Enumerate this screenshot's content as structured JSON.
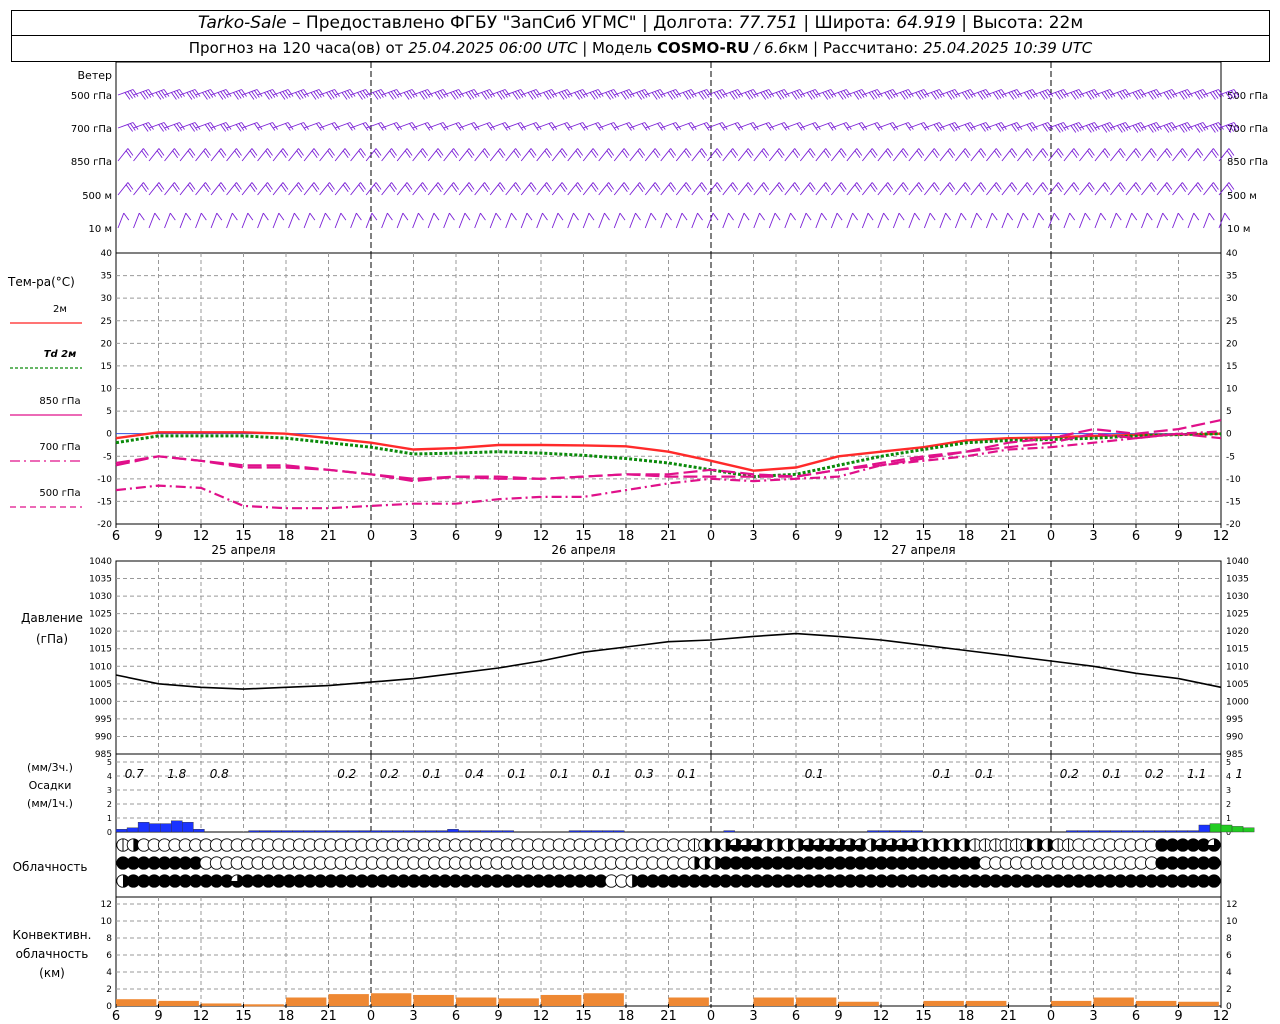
{
  "header": {
    "station": "Tarko-Sale",
    "provider": " – Предоставлено ФГБУ \"ЗапСиб УГМС\" | Долгота: ",
    "lon": "77.751",
    "lat_label": " | Широта: ",
    "lat": "64.919",
    "alt_label": " | Высота: 22м",
    "forecast_prefix": "Прогноз на 120 часа(ов) от ",
    "forecast_from": "25.04.2025 06:00 UTC",
    "model_label": " | Модель ",
    "model": "COSMO-RU",
    "model_res": " / 6.6",
    "model_res_unit": "км | Рассчитано: ",
    "computed": "25.04.2025 10:39 UTC"
  },
  "panels": {
    "wind": {
      "title": "Ветер",
      "levels": [
        "500 гПа",
        "700 гПа",
        "850 гПа",
        "500 м",
        "10 м"
      ]
    },
    "temp": {
      "title": "Тем-ра(°C)",
      "legend": [
        {
          "text": "2м",
          "color": "#ff2020",
          "dash": ""
        },
        {
          "text": "Td 2м",
          "color": "#0a8a0a",
          "dash": "3,2"
        },
        {
          "text": "850 гПа",
          "color": "#e0108a",
          "dash": ""
        },
        {
          "text": "700 гПа",
          "color": "#e0108a",
          "dash": "10,4,2,4"
        },
        {
          "text": "500 гПа",
          "color": "#e0108a",
          "dash": "6,4"
        }
      ]
    },
    "pressure": {
      "title": "Давление",
      "unit": "(гПа)"
    },
    "precip": {
      "title1": "(мм/3ч.)",
      "title2": "Осадки",
      "title3": "(мм/1ч.)"
    },
    "cloud": {
      "title": "Облачность"
    },
    "conv": {
      "title1": "Конвективн.",
      "title2": "облачность",
      "title3": "(км)"
    }
  },
  "time_axis": {
    "hour_labels": [
      "6",
      "9",
      "12",
      "15",
      "18",
      "21",
      "0",
      "3",
      "6",
      "9",
      "12",
      "15",
      "18",
      "21",
      "0",
      "3",
      "6",
      "9",
      "12",
      "15",
      "18",
      "21",
      "0",
      "3",
      "6",
      "9",
      "12"
    ],
    "day_labels": [
      "25 апреля",
      "26 апреля",
      "27 апреля"
    ]
  },
  "chart_data": [
    {
      "type": "line",
      "title": "Тем-ра(°C)",
      "x_hours": [
        0,
        3,
        6,
        9,
        12,
        15,
        18,
        21,
        24,
        27,
        30,
        33,
        36,
        39,
        42,
        45,
        48,
        51,
        54,
        57,
        60,
        63,
        66,
        69,
        72,
        75,
        78
      ],
      "ylim": [
        -20,
        40
      ],
      "series": [
        {
          "name": "2м",
          "values": [
            -1,
            0.3,
            0.3,
            0.3,
            0,
            -1,
            -2,
            -3.5,
            -3.2,
            -2.5,
            -2.5,
            -2.6,
            -2.8,
            -4,
            -6,
            -8.2,
            -7.5,
            -5,
            -4,
            -3,
            -1.5,
            -1,
            -0.8,
            -0.5,
            -0.3,
            -0.2,
            0
          ]
        },
        {
          "name": "Td 2м",
          "values": [
            -2,
            -0.5,
            -0.5,
            -0.5,
            -1,
            -2,
            -3,
            -4.5,
            -4.3,
            -4,
            -4.3,
            -4.8,
            -5.5,
            -6.5,
            -8,
            -9.5,
            -9,
            -7,
            -5,
            -3.5,
            -2,
            -1.5,
            -1.3,
            -1,
            -0.5,
            -0.2,
            0
          ]
        },
        {
          "name": "850 гПа",
          "values": [
            -6.5,
            -5,
            -6,
            -7.5,
            -7.5,
            -8,
            -9,
            -10.5,
            -9.5,
            -10,
            -10,
            -9.5,
            -9,
            -9.5,
            -9.5,
            -9.5,
            -9.5,
            -8,
            -7,
            -5.5,
            -4,
            -3,
            -2,
            0,
            -1,
            0,
            -1
          ]
        },
        {
          "name": "700 гПа",
          "values": [
            -12.5,
            -11.5,
            -12,
            -16,
            -16.5,
            -16.5,
            -16,
            -15.5,
            -15.5,
            -14.5,
            -14,
            -14,
            -12.5,
            -11,
            -10,
            -10.5,
            -10,
            -9.5,
            -7,
            -6,
            -5,
            -3.5,
            -3,
            -2,
            -1,
            0,
            0.5
          ]
        },
        {
          "name": "500 гПа",
          "values": [
            -7,
            -5,
            -6,
            -7,
            -7,
            -8,
            -9,
            -10,
            -9.5,
            -9.5,
            -10,
            -9.5,
            -9,
            -9,
            -8,
            -9,
            -9.5,
            -8,
            -6.5,
            -5,
            -4,
            -2,
            -1,
            1,
            0,
            1,
            3
          ]
        }
      ]
    },
    {
      "type": "line",
      "title": "Давление",
      "x_hours": [
        0,
        3,
        6,
        9,
        12,
        15,
        18,
        21,
        24,
        27,
        30,
        33,
        36,
        39,
        42,
        45,
        48,
        51,
        54,
        57,
        60,
        63,
        66,
        69,
        72,
        75,
        78
      ],
      "ylim": [
        985,
        1040
      ],
      "series": [
        {
          "name": "Давление",
          "values": [
            1007.5,
            1005,
            1004,
            1003.5,
            1004,
            1004.5,
            1005.5,
            1006.5,
            1008,
            1009.5,
            1011.5,
            1014,
            1015.5,
            1017,
            1017.5,
            1018.5,
            1019.3,
            1018.5,
            1017.5,
            1016,
            1014.5,
            1013,
            1011.5,
            1010,
            1008,
            1006.5,
            1004
          ]
        }
      ]
    },
    {
      "type": "bar",
      "title": "Осадки",
      "labels_3h": [
        "0.7",
        "1.8",
        "0.8",
        "",
        "",
        "0.2",
        "0.2",
        "0.1",
        "0.4",
        "0.1",
        "0.1",
        "0.1",
        "0.3",
        "0.1",
        "",
        "",
        "0.1",
        "",
        "",
        "0.1",
        "0.1",
        "",
        "0.2",
        "0.1",
        "0.2",
        "1.1",
        "1"
      ],
      "hourly_mm": [
        0.2,
        0.3,
        0.7,
        0.6,
        0.6,
        0.8,
        0.7,
        0.2,
        0,
        0,
        0,
        0,
        0.1,
        0.1,
        0.1,
        0.1,
        0.1,
        0.1,
        0.1,
        0.1,
        0.1,
        0.1,
        0.1,
        0.1,
        0.1,
        0.1,
        0.1,
        0.1,
        0.1,
        0.1,
        0.2,
        0.1,
        0.1,
        0.1,
        0.1,
        0.1,
        0,
        0,
        0,
        0,
        0,
        0.1,
        0.1,
        0.1,
        0.1,
        0.1,
        0,
        0,
        0,
        0,
        0,
        0,
        0,
        0,
        0,
        0.1,
        0,
        0,
        0,
        0,
        0,
        0,
        0,
        0,
        0,
        0,
        0,
        0,
        0.1,
        0.1,
        0.1,
        0.1,
        0.1,
        0,
        0,
        0,
        0,
        0,
        0,
        0,
        0,
        0,
        0,
        0,
        0,
        0,
        0.1,
        0.1,
        0.1,
        0.1,
        0.1,
        0.1,
        0.1,
        0.1,
        0.1,
        0.1,
        0.1,
        0.1,
        0.5,
        0.6,
        0.5,
        0.4,
        0.3
      ],
      "colors": {
        "rain": "#1a33ff",
        "solid": "#22cc22"
      },
      "ylim": [
        0,
        5
      ]
    },
    {
      "type": "bar",
      "title": "Конвективн. облачность",
      "x_hours": [
        0,
        3,
        6,
        9,
        12,
        15,
        18,
        21,
        24,
        27,
        30,
        33,
        36,
        39,
        42,
        45,
        48,
        51,
        54,
        57,
        60,
        63,
        66,
        69,
        72,
        75,
        78
      ],
      "values_km": [
        0.8,
        0.6,
        0.3,
        0.2,
        1.0,
        1.4,
        1.5,
        1.3,
        1.0,
        0.9,
        1.3,
        1.5,
        0.0,
        1.0,
        0.0,
        1.0,
        1.0,
        0.5,
        0.0,
        0.6,
        0.6,
        0.0,
        0.6,
        1.0,
        0.6,
        0.5,
        0.4
      ],
      "color": "#ee8833",
      "ylim": [
        0,
        12
      ]
    },
    {
      "type": "table",
      "title": "Облачность",
      "rows": [
        {
          "name": "upper",
          "fill": [
            1,
            2,
            0,
            0,
            0,
            0,
            0,
            0,
            0,
            0,
            0,
            0,
            0,
            0,
            0,
            0,
            0,
            0,
            0,
            0,
            0,
            0,
            0,
            0,
            0,
            0,
            0,
            0,
            0,
            0,
            0,
            0,
            0,
            0,
            0,
            0,
            0,
            0,
            0,
            0,
            0,
            0,
            0,
            0,
            0,
            0,
            0,
            0,
            0,
            0,
            0,
            0,
            0,
            0,
            0,
            1,
            2,
            2,
            2,
            3,
            3,
            3,
            2,
            2,
            2,
            2,
            3,
            3,
            3,
            3,
            3,
            3,
            2,
            3,
            3,
            3,
            3,
            2,
            2,
            2,
            2,
            2,
            1,
            1,
            1,
            1,
            1,
            2,
            2,
            2,
            1,
            1,
            0,
            0,
            0,
            0,
            0,
            0,
            0,
            0,
            4,
            4,
            4,
            4,
            4,
            3
          ]
        },
        {
          "name": "middle",
          "fill": [
            4,
            4,
            4,
            4,
            4,
            4,
            4,
            4,
            0,
            0,
            0,
            0,
            0,
            0,
            0,
            0,
            0,
            0,
            0,
            0,
            0,
            0,
            0,
            0,
            0,
            0,
            0,
            0,
            0,
            0,
            0,
            0,
            0,
            0,
            0,
            0,
            0,
            0,
            0,
            0,
            0,
            0,
            0,
            0,
            0,
            0,
            0,
            0,
            0,
            0,
            0,
            0,
            0,
            0,
            0,
            2,
            2,
            2,
            4,
            4,
            4,
            4,
            4,
            4,
            4,
            4,
            4,
            4,
            4,
            4,
            4,
            4,
            4,
            4,
            4,
            4,
            4,
            4,
            4,
            4,
            4,
            4,
            4,
            0,
            0,
            0,
            0,
            0,
            0,
            0,
            0,
            0,
            0,
            0,
            0,
            0,
            0,
            0,
            0,
            0,
            4,
            4,
            4,
            4,
            4,
            4
          ]
        },
        {
          "name": "low",
          "fill": [
            2,
            4,
            4,
            4,
            4,
            4,
            4,
            4,
            4,
            4,
            4,
            3,
            4,
            4,
            4,
            4,
            4,
            4,
            4,
            4,
            4,
            4,
            4,
            4,
            4,
            4,
            4,
            4,
            4,
            4,
            4,
            4,
            4,
            4,
            4,
            4,
            4,
            4,
            4,
            4,
            4,
            4,
            4,
            4,
            4,
            4,
            4,
            0,
            0,
            2,
            4,
            4,
            4,
            4,
            4,
            4,
            4,
            4,
            4,
            4,
            4,
            4,
            4,
            4,
            4,
            4,
            4,
            4,
            4,
            4,
            4,
            4,
            4,
            4,
            4,
            4,
            4,
            4,
            4,
            4,
            4,
            4,
            4,
            4,
            4,
            4,
            4,
            4,
            4,
            4,
            4,
            4,
            4,
            4,
            4,
            4,
            4,
            4,
            4,
            4,
            4,
            4,
            4,
            4,
            4,
            4
          ]
        }
      ]
    },
    {
      "type": "scatter",
      "title": "Ветер",
      "levels": [
        "500 гПа",
        "700 гПа",
        "850 гПа",
        "500 м",
        "10 м"
      ],
      "count_per_level": 72,
      "speed_ms": {
        "500 гПа": [
          20,
          20,
          20,
          20,
          20,
          20,
          20,
          20,
          20,
          20,
          20,
          20,
          20,
          20,
          20,
          20,
          20,
          20,
          20,
          20,
          20,
          20,
          20,
          20,
          20,
          20,
          20,
          20,
          20,
          20,
          20,
          20,
          20,
          20,
          20,
          20,
          20,
          20,
          20,
          20,
          20,
          20,
          20,
          20,
          20,
          20,
          20,
          20,
          20,
          20,
          20,
          20,
          20,
          20,
          20,
          20,
          20,
          20,
          20,
          20,
          20,
          20,
          20,
          20,
          20,
          20,
          20,
          20,
          20,
          20,
          20,
          20
        ],
        "700 гПа": [
          15,
          15,
          15,
          15,
          15,
          15,
          15,
          15,
          10,
          10,
          10,
          10,
          10,
          10,
          10,
          10,
          10,
          10,
          10,
          10,
          10,
          10,
          10,
          10,
          10,
          10,
          10,
          10,
          10,
          10,
          10,
          10,
          10,
          10,
          10,
          10,
          10,
          10,
          10,
          10,
          10,
          10,
          10,
          10,
          10,
          10,
          10,
          10,
          10,
          10,
          10,
          10,
          15,
          15,
          15,
          15,
          15,
          15,
          15,
          15,
          20,
          20,
          20,
          20,
          20,
          20,
          20,
          20,
          20,
          20,
          20,
          20
        ],
        "850 гПа": [
          12,
          12,
          12,
          12,
          12,
          12,
          8,
          8,
          8,
          8,
          8,
          8,
          8,
          8,
          8,
          8,
          8,
          8,
          8,
          8,
          8,
          8,
          8,
          8,
          8,
          8,
          8,
          8,
          8,
          8,
          8,
          8,
          8,
          8,
          8,
          8,
          8,
          8,
          8,
          8,
          8,
          8,
          8,
          8,
          8,
          8,
          8,
          8,
          8,
          8,
          8,
          8,
          8,
          8,
          8,
          8,
          8,
          8,
          8,
          12,
          12,
          12,
          12,
          12,
          12,
          12,
          12,
          12,
          12,
          12,
          12,
          12
        ],
        "500 м": [
          10,
          10,
          10,
          10,
          10,
          10,
          8,
          8,
          8,
          8,
          8,
          8,
          8,
          8,
          8,
          8,
          8,
          8,
          8,
          8,
          8,
          8,
          8,
          8,
          8,
          8,
          8,
          8,
          8,
          8,
          8,
          8,
          8,
          8,
          8,
          8,
          8,
          8,
          8,
          8,
          8,
          8,
          8,
          8,
          8,
          8,
          8,
          8,
          8,
          8,
          8,
          8,
          8,
          8,
          8,
          8,
          8,
          8,
          8,
          10,
          10,
          10,
          10,
          10,
          10,
          10,
          10,
          10,
          10,
          10,
          10,
          10
        ],
        "10 м": [
          5,
          5,
          5,
          5,
          5,
          5,
          5,
          5,
          5,
          5,
          5,
          5,
          5,
          5,
          5,
          5,
          5,
          5,
          5,
          5,
          5,
          5,
          5,
          5,
          5,
          5,
          5,
          5,
          5,
          5,
          5,
          5,
          5,
          5,
          5,
          5,
          5,
          5,
          5,
          5,
          5,
          5,
          5,
          5,
          5,
          5,
          5,
          5,
          5,
          5,
          5,
          5,
          5,
          5,
          5,
          5,
          5,
          5,
          5,
          5,
          5,
          5,
          5,
          5,
          5,
          5,
          5,
          5,
          5,
          5,
          5,
          5
        ]
      },
      "color": "#7a1fd6"
    }
  ],
  "colors": {
    "grid": "#888888",
    "wind": "#7a1fd6",
    "pressure": "#000000",
    "zero_line": "#3050e0"
  }
}
